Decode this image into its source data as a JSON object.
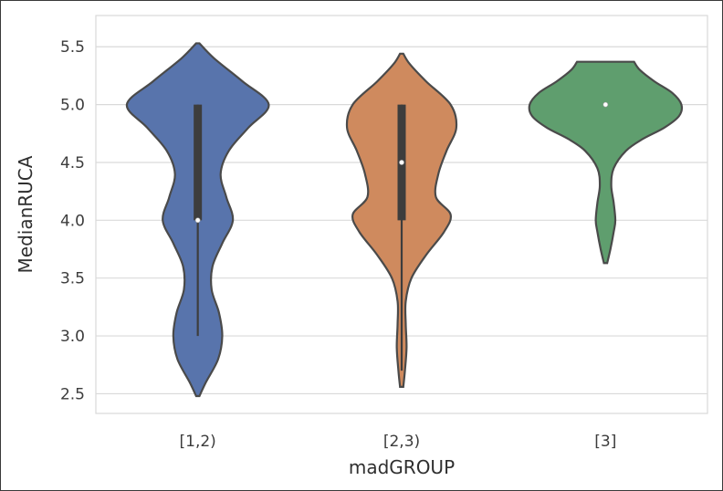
{
  "chart_data": {
    "type": "violin",
    "xlabel": "madGROUP",
    "ylabel": "MedianRUCA",
    "categories": [
      "[1,2)",
      "[2,3)",
      "[3]"
    ],
    "ylim": [
      2.33,
      5.77
    ],
    "yticks": [
      2.5,
      3.0,
      3.5,
      4.0,
      4.5,
      5.0,
      5.5
    ],
    "ytick_labels": [
      "2.5",
      "3.0",
      "3.5",
      "4.0",
      "4.5",
      "5.0",
      "5.5"
    ],
    "grid": "horizontal",
    "colors": [
      "#5874ac",
      "#cf8a5e",
      "#5f9e6e"
    ],
    "violins": [
      {
        "name": "[1,2)",
        "median": 4.0,
        "q1": 4.0,
        "q3": 5.0,
        "whisker_low": 3.0,
        "whisker_high": 5.0,
        "min": 2.48,
        "max": 5.53,
        "density": [
          [
            2.48,
            0.02
          ],
          [
            2.6,
            0.1
          ],
          [
            2.8,
            0.25
          ],
          [
            3.0,
            0.3
          ],
          [
            3.2,
            0.26
          ],
          [
            3.4,
            0.17
          ],
          [
            3.6,
            0.18
          ],
          [
            3.8,
            0.3
          ],
          [
            4.0,
            0.43
          ],
          [
            4.2,
            0.35
          ],
          [
            4.4,
            0.28
          ],
          [
            4.6,
            0.38
          ],
          [
            4.8,
            0.62
          ],
          [
            5.0,
            0.87
          ],
          [
            5.2,
            0.55
          ],
          [
            5.4,
            0.2
          ],
          [
            5.53,
            0.02
          ]
        ]
      },
      {
        "name": "[2,3)",
        "median": 4.5,
        "q1": 4.0,
        "q3": 5.0,
        "whisker_low": 2.7,
        "whisker_high": 5.0,
        "min": 2.56,
        "max": 5.44,
        "density": [
          [
            2.56,
            0.02
          ],
          [
            2.7,
            0.04
          ],
          [
            2.9,
            0.06
          ],
          [
            3.1,
            0.05
          ],
          [
            3.3,
            0.05
          ],
          [
            3.5,
            0.12
          ],
          [
            3.7,
            0.3
          ],
          [
            3.9,
            0.52
          ],
          [
            4.05,
            0.6
          ],
          [
            4.2,
            0.42
          ],
          [
            4.4,
            0.45
          ],
          [
            4.6,
            0.55
          ],
          [
            4.8,
            0.67
          ],
          [
            5.0,
            0.6
          ],
          [
            5.2,
            0.3
          ],
          [
            5.35,
            0.1
          ],
          [
            5.44,
            0.02
          ]
        ]
      },
      {
        "name": "[3]",
        "median": 5.0,
        "q1": 5.0,
        "q3": 5.0,
        "whisker_low": 5.0,
        "whisker_high": 5.0,
        "min": 3.63,
        "max": 5.37,
        "density": [
          [
            3.63,
            0.02
          ],
          [
            3.75,
            0.06
          ],
          [
            3.9,
            0.1
          ],
          [
            4.0,
            0.12
          ],
          [
            4.15,
            0.1
          ],
          [
            4.3,
            0.07
          ],
          [
            4.45,
            0.1
          ],
          [
            4.6,
            0.25
          ],
          [
            4.7,
            0.45
          ],
          [
            4.8,
            0.72
          ],
          [
            4.9,
            0.9
          ],
          [
            5.0,
            0.93
          ],
          [
            5.1,
            0.82
          ],
          [
            5.2,
            0.6
          ],
          [
            5.3,
            0.42
          ],
          [
            5.37,
            0.35
          ]
        ]
      }
    ]
  }
}
